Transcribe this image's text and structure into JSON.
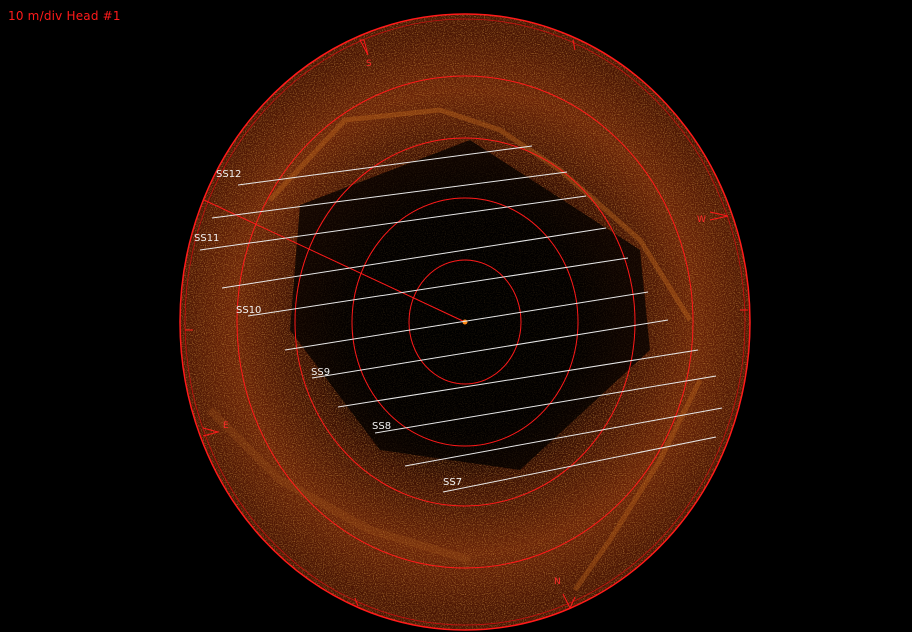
{
  "header": {
    "scale_label": "10 m/div Head #1"
  },
  "compass": {
    "north": "N",
    "south": "S",
    "east": "E",
    "west": "W"
  },
  "survey_lines": [
    {
      "label": "SS12"
    },
    {
      "label": "SS11"
    },
    {
      "label": "SS10"
    },
    {
      "label": "SS9"
    },
    {
      "label": "SS8"
    },
    {
      "label": "SS7"
    }
  ],
  "colors": {
    "overlay": "#ff1a1a",
    "lines": "#e8e8e8",
    "sonar_base": "#3a0d02",
    "sonar_bright": "#c8701a"
  }
}
